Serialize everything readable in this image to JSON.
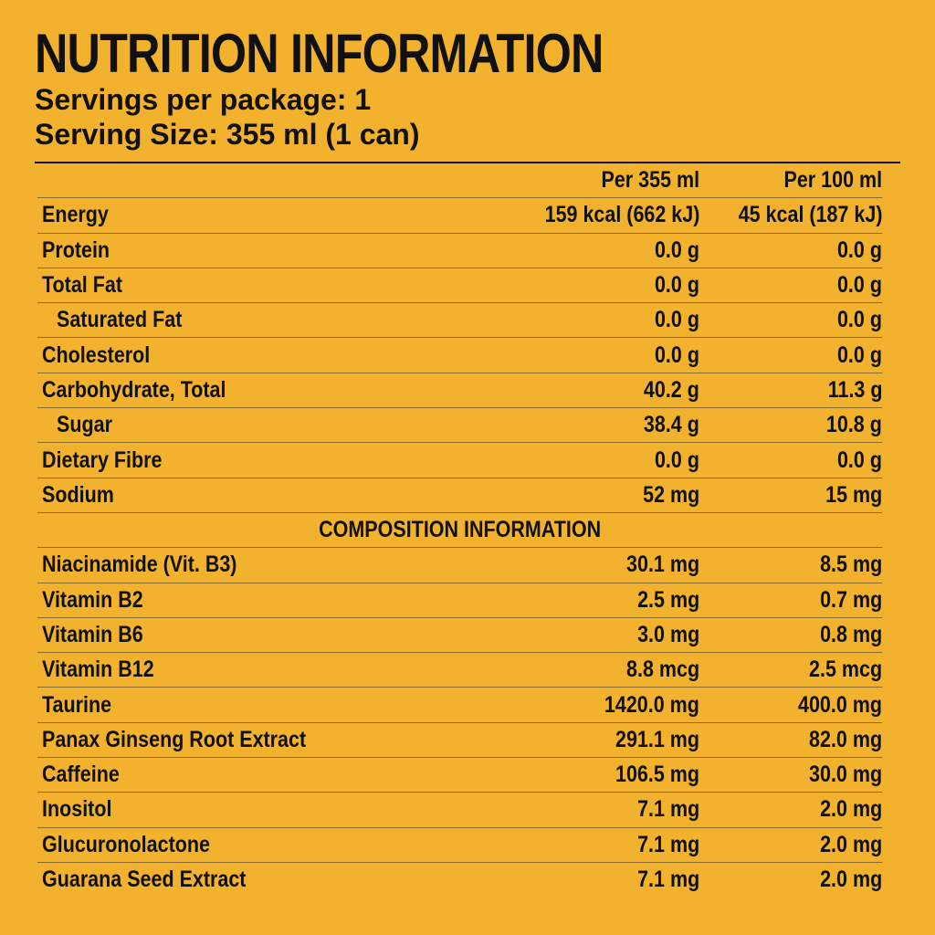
{
  "title": "NUTRITION INFORMATION",
  "servings_per_package": "Servings per package:  1",
  "serving_size": "Serving Size: 355 ml (1 can)",
  "columns": {
    "per_355": "Per 355 ml",
    "per_100": "Per 100 ml"
  },
  "nutrition": [
    {
      "name": "Energy",
      "per355": "159 kcal (662 kJ)",
      "per100": "45 kcal (187 kJ)"
    },
    {
      "name": "Protein",
      "per355": "0.0 g",
      "per100": "0.0 g"
    },
    {
      "name": "Total Fat",
      "per355": "0.0 g",
      "per100": "0.0 g"
    },
    {
      "name": "Saturated Fat",
      "per355": "0.0 g",
      "per100": "0.0 g"
    },
    {
      "name": "Cholesterol",
      "per355": "0.0 g",
      "per100": "0.0 g"
    },
    {
      "name": "Carbohydrate, Total",
      "per355": "40.2 g",
      "per100": "11.3 g"
    },
    {
      "name": "Sugar",
      "per355": "38.4 g",
      "per100": "10.8 g"
    },
    {
      "name": "Dietary Fibre",
      "per355": "0.0 g",
      "per100": "0.0 g"
    },
    {
      "name": "Sodium",
      "per355": "52 mg",
      "per100": "15 mg"
    }
  ],
  "composition_heading": "COMPOSITION INFORMATION",
  "composition": [
    {
      "name": "Niacinamide (Vit. B3)",
      "per355": "30.1 mg",
      "per100": "8.5 mg"
    },
    {
      "name": "Vitamin B2",
      "per355": "2.5 mg",
      "per100": "0.7 mg"
    },
    {
      "name": "Vitamin B6",
      "per355": "3.0 mg",
      "per100": "0.8 mg"
    },
    {
      "name": "Vitamin B12",
      "per355": "8.8 mcg",
      "per100": "2.5 mcg"
    },
    {
      "name": "Taurine",
      "per355": "1420.0 mg",
      "per100": "400.0 mg"
    },
    {
      "name": "Panax Ginseng Root Extract",
      "per355": "291.1 mg",
      "per100": "82.0 mg"
    },
    {
      "name": "Caffeine",
      "per355": "106.5 mg",
      "per100": "30.0 mg"
    },
    {
      "name": "Inositol",
      "per355": "7.1 mg",
      "per100": "2.0 mg"
    },
    {
      "name": "Glucuronolactone",
      "per355": "7.1 mg",
      "per100": "2.0 mg"
    },
    {
      "name": "Guarana Seed Extract",
      "per355": "7.1 mg",
      "per100": "2.0 mg"
    }
  ],
  "colors": {
    "background": "#F2B22E",
    "text": "#111111"
  }
}
